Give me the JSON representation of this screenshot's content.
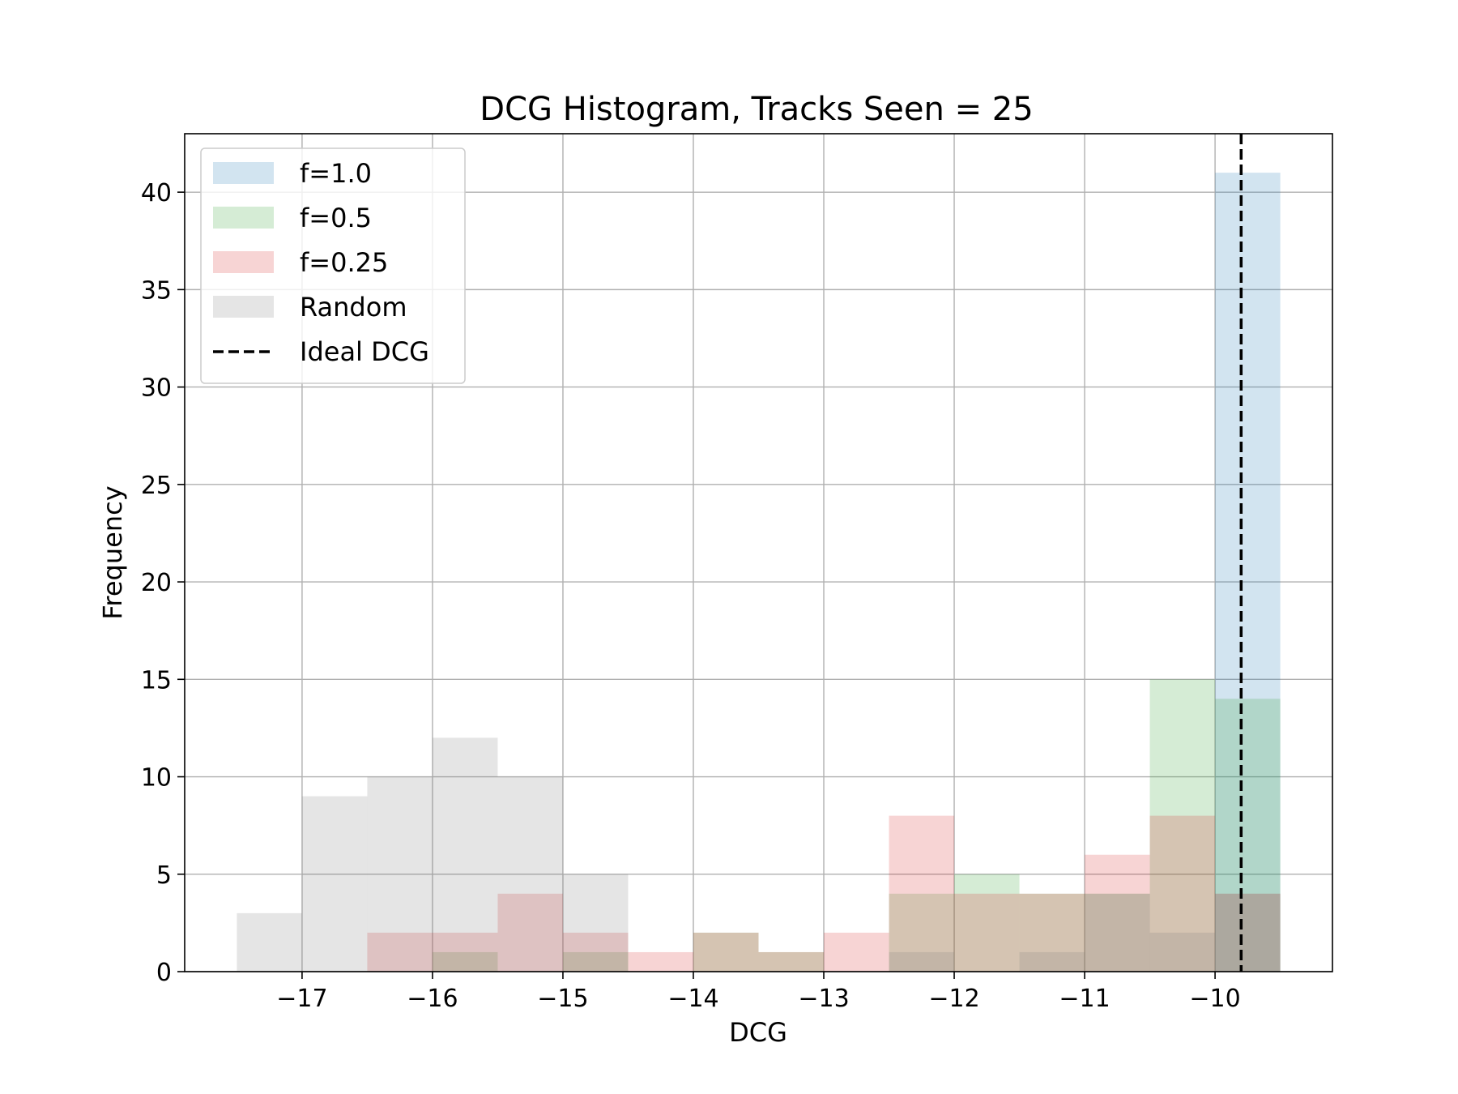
{
  "chart_data": {
    "type": "bar",
    "title": "DCG Histogram, Tracks Seen = 25",
    "xlabel": "DCG",
    "ylabel": "Frequency",
    "xlim": [
      -17.9,
      -9.1
    ],
    "ylim": [
      0,
      43
    ],
    "xticks": [
      -17,
      -16,
      -15,
      -14,
      -13,
      -12,
      -11,
      -10
    ],
    "xtick_labels": [
      "−17",
      "−16",
      "−15",
      "−14",
      "−13",
      "−12",
      "−11",
      "−10"
    ],
    "yticks": [
      0,
      5,
      10,
      15,
      20,
      25,
      30,
      35,
      40
    ],
    "ytick_labels": [
      "0",
      "5",
      "10",
      "15",
      "20",
      "25",
      "30",
      "35",
      "40"
    ],
    "grid": true,
    "legend_position": "top-left",
    "bin_edges": [
      -17.5,
      -17.0,
      -16.5,
      -16.0,
      -15.5,
      -15.0,
      -14.5,
      -14.0,
      -13.5,
      -13.0,
      -12.5,
      -12.0,
      -11.5,
      -11.0,
      -10.5,
      -10.0,
      -9.5
    ],
    "series": [
      {
        "name": "f=1.0",
        "color": "#1f77b4",
        "alpha": 0.2,
        "values": [
          0,
          0,
          0,
          0,
          0,
          0,
          0,
          0,
          0,
          0,
          0,
          0,
          0,
          0,
          0,
          41
        ]
      },
      {
        "name": "f=0.5",
        "color": "#2ca02c",
        "alpha": 0.2,
        "values": [
          0,
          0,
          0,
          1,
          0,
          1,
          0,
          2,
          1,
          0,
          4,
          5,
          4,
          4,
          15,
          14
        ]
      },
      {
        "name": "f=0.25",
        "color": "#d62728",
        "alpha": 0.2,
        "values": [
          0,
          0,
          2,
          2,
          4,
          2,
          1,
          2,
          1,
          2,
          8,
          4,
          4,
          6,
          8,
          4
        ]
      },
      {
        "name": "Random",
        "color": "#7f7f7f",
        "alpha": 0.2,
        "values": [
          3,
          9,
          10,
          12,
          10,
          5,
          0,
          0,
          0,
          0,
          1,
          0,
          1,
          4,
          2,
          4
        ]
      }
    ],
    "ideal_line": {
      "name": "Ideal DCG",
      "x": -9.8,
      "color": "#000000",
      "style": "dashed"
    }
  }
}
